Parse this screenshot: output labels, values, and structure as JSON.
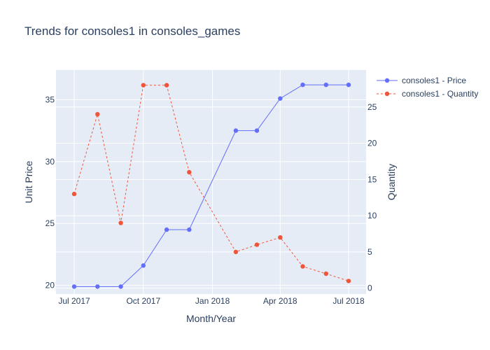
{
  "chart_data": {
    "type": "line",
    "title": "Trends for consoles1 in consoles_games",
    "xlabel": "Month/Year",
    "ylabel": "Unit Price",
    "y2label": "Quantity",
    "x": [
      "2017-07",
      "2017-08",
      "2017-09",
      "2017-10",
      "2017-11",
      "2017-12",
      "2018-02",
      "2018-03",
      "2018-04",
      "2018-05",
      "2018-06",
      "2018-07"
    ],
    "x_ticks": [
      {
        "date": "2017-07",
        "label": "Jul 2017"
      },
      {
        "date": "2017-10",
        "label": "Oct 2017"
      },
      {
        "date": "2018-01",
        "label": "Jan 2018"
      },
      {
        "date": "2018-04",
        "label": "Apr 2018"
      },
      {
        "date": "2018-07",
        "label": "Jul 2018"
      }
    ],
    "y_ticks": [
      20,
      25,
      30,
      35
    ],
    "y2_ticks": [
      0,
      5,
      10,
      15,
      20,
      25
    ],
    "ylim": [
      19.3,
      37.4
    ],
    "y2lim": [
      -0.8,
      30.1
    ],
    "series": [
      {
        "name": "consoles1 - Price",
        "axis": "y",
        "color": "#636efa",
        "dash": "solid",
        "values": [
          19.9,
          19.9,
          19.9,
          21.6,
          24.5,
          24.5,
          32.5,
          32.5,
          35.1,
          36.2,
          36.2,
          36.2
        ]
      },
      {
        "name": "consoles1 - Quantity",
        "axis": "y2",
        "color": "#ef553b",
        "dash": "dot",
        "values": [
          13,
          24,
          9,
          28,
          28,
          16,
          5,
          6,
          7,
          3,
          2,
          1
        ]
      }
    ],
    "grid": true,
    "legend": "top-right"
  }
}
